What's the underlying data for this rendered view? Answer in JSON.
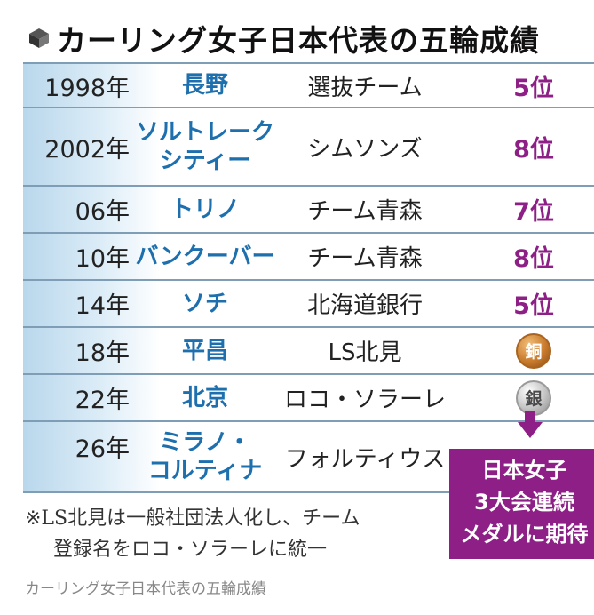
{
  "title": "カーリング女子日本代表の五輪成績",
  "rows": [
    {
      "year": "1998年",
      "city": "長野",
      "team": "選抜チーム",
      "result": "5位",
      "medal": ""
    },
    {
      "year": "2002年",
      "city": "ソルトレーク\nシティー",
      "team": "シムソンズ",
      "result": "8位",
      "medal": ""
    },
    {
      "year": "06年",
      "city": "トリノ",
      "team": "チーム青森",
      "result": "7位",
      "medal": ""
    },
    {
      "year": "10年",
      "city": "バンクーバー",
      "team": "チーム青森",
      "result": "8位",
      "medal": ""
    },
    {
      "year": "14年",
      "city": "ソチ",
      "team": "北海道銀行",
      "result": "5位",
      "medal": ""
    },
    {
      "year": "18年",
      "city": "平昌",
      "team": "LS北見",
      "result": "",
      "medal": "銅"
    },
    {
      "year": "22年",
      "city": "北京",
      "team": "ロコ・ソラーレ",
      "result": "",
      "medal": "銀"
    },
    {
      "year": "26年",
      "city": "ミラノ・\nコルティナ",
      "team": "フォルティウス",
      "result": "",
      "medal": ""
    }
  ],
  "callout": {
    "line1": "日本女子",
    "line2": "3大会連続",
    "line3": "メダルに期待"
  },
  "note": {
    "line1": "※LS北見は一般社団法人化し、チーム",
    "line2": "登録名をロコ・ソラーレに統一"
  },
  "caption": "カーリング女子日本代表の五輪成績",
  "colors": {
    "city": "#1d6fae",
    "result": "#8d1f86",
    "bronze": "#c97b2c",
    "silver": "#c9c9c9",
    "rule": "#7f9db5"
  }
}
